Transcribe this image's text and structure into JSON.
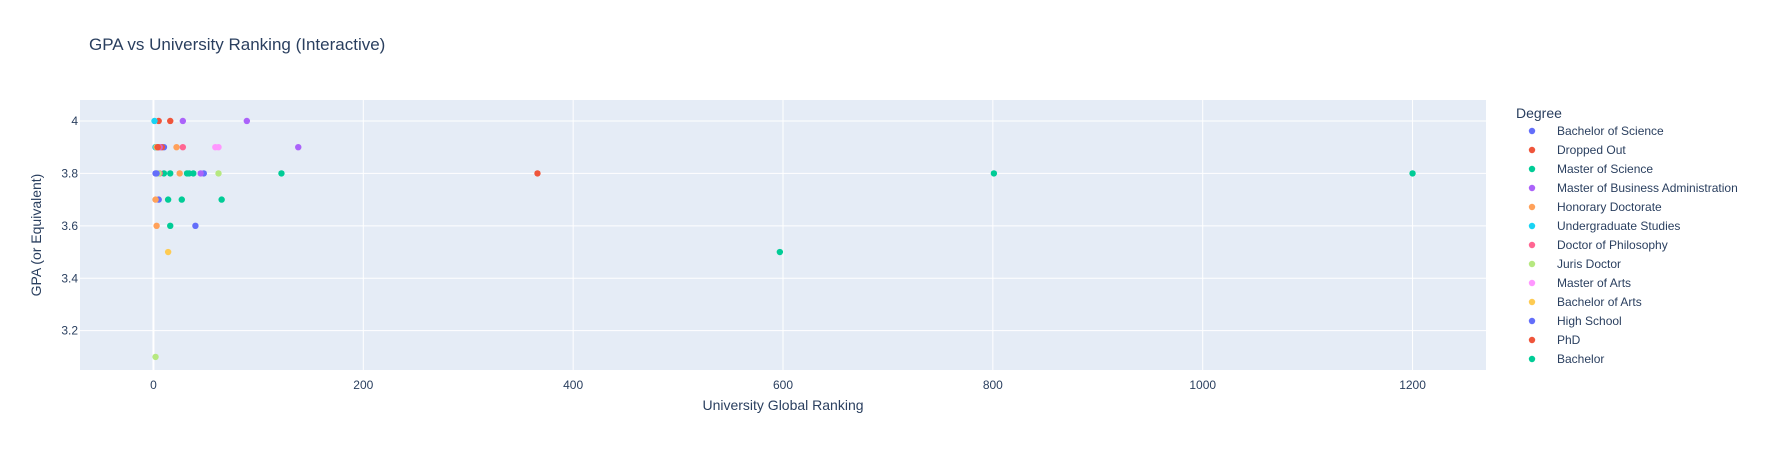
{
  "chart_data": {
    "type": "scatter",
    "title": "GPA vs University Ranking (Interactive)",
    "xlabel": "University Global Ranking",
    "ylabel": "GPA (or Equivalent)",
    "xlim": [
      -70,
      1270
    ],
    "ylim": [
      3.05,
      4.08
    ],
    "x_ticks": [
      0,
      200,
      400,
      600,
      800,
      1000,
      1200
    ],
    "y_ticks": [
      3.2,
      3.4,
      3.6,
      3.8,
      4.0
    ],
    "y_tick_labels": [
      "3.2",
      "3.4",
      "3.6",
      "3.8",
      "4"
    ],
    "grid": true,
    "legend_title": "Degree",
    "legend_position": "right",
    "series": [
      {
        "name": "Bachelor of Science",
        "color": "#636efa",
        "points": [
          [
            2,
            3.8
          ],
          [
            4,
            3.9
          ],
          [
            10,
            3.9
          ],
          [
            40,
            3.6
          ],
          [
            48,
            3.8
          ],
          [
            5,
            3.7
          ]
        ]
      },
      {
        "name": "Dropped Out",
        "color": "#EF553B",
        "points": [
          [
            2,
            3.9
          ],
          [
            5,
            4.0
          ],
          [
            16,
            4.0
          ],
          [
            366,
            3.8
          ],
          [
            8,
            3.9
          ]
        ]
      },
      {
        "name": "Master of Science",
        "color": "#00cc96",
        "points": [
          [
            10,
            3.8
          ],
          [
            16,
            3.8
          ],
          [
            14,
            3.7
          ],
          [
            27,
            3.7
          ],
          [
            32,
            3.8
          ],
          [
            122,
            3.8
          ],
          [
            65,
            3.7
          ],
          [
            16,
            3.6
          ],
          [
            597,
            3.5
          ],
          [
            801,
            3.8
          ],
          [
            1200,
            3.8
          ],
          [
            3,
            3.9
          ]
        ]
      },
      {
        "name": "Master of Business Administration",
        "color": "#ab63fa",
        "points": [
          [
            28,
            4.0
          ],
          [
            89,
            4.0
          ],
          [
            138,
            3.9
          ],
          [
            6,
            3.9
          ],
          [
            45,
            3.8
          ]
        ]
      },
      {
        "name": "Honorary Doctorate",
        "color": "#FFA15A",
        "points": [
          [
            3,
            3.6
          ],
          [
            22,
            3.9
          ],
          [
            25,
            3.8
          ],
          [
            2,
            3.7
          ]
        ]
      },
      {
        "name": "Undergraduate Studies",
        "color": "#19d3f3",
        "points": [
          [
            1,
            4.0
          ],
          [
            2,
            3.9
          ]
        ]
      },
      {
        "name": "Doctor of Philosophy",
        "color": "#FF6692",
        "points": [
          [
            28,
            3.9
          ],
          [
            5,
            3.9
          ],
          [
            6,
            3.8
          ]
        ]
      },
      {
        "name": "Juris Doctor",
        "color": "#B6E880",
        "points": [
          [
            2,
            3.1
          ],
          [
            62,
            3.8
          ],
          [
            5,
            3.8
          ]
        ]
      },
      {
        "name": "Master of Arts",
        "color": "#FF97FF",
        "points": [
          [
            59,
            3.9
          ],
          [
            62,
            3.9
          ]
        ]
      },
      {
        "name": "Bachelor of Arts",
        "color": "#FECB52",
        "points": [
          [
            14,
            3.5
          ],
          [
            3,
            3.9
          ]
        ]
      },
      {
        "name": "High School",
        "color": "#636efa",
        "points": [
          [
            3,
            3.8
          ]
        ]
      },
      {
        "name": "PhD",
        "color": "#EF553B",
        "points": [
          [
            4,
            3.9
          ]
        ]
      },
      {
        "name": "Bachelor",
        "color": "#00cc96",
        "points": [
          [
            38,
            3.8
          ],
          [
            34,
            3.8
          ]
        ]
      }
    ]
  }
}
